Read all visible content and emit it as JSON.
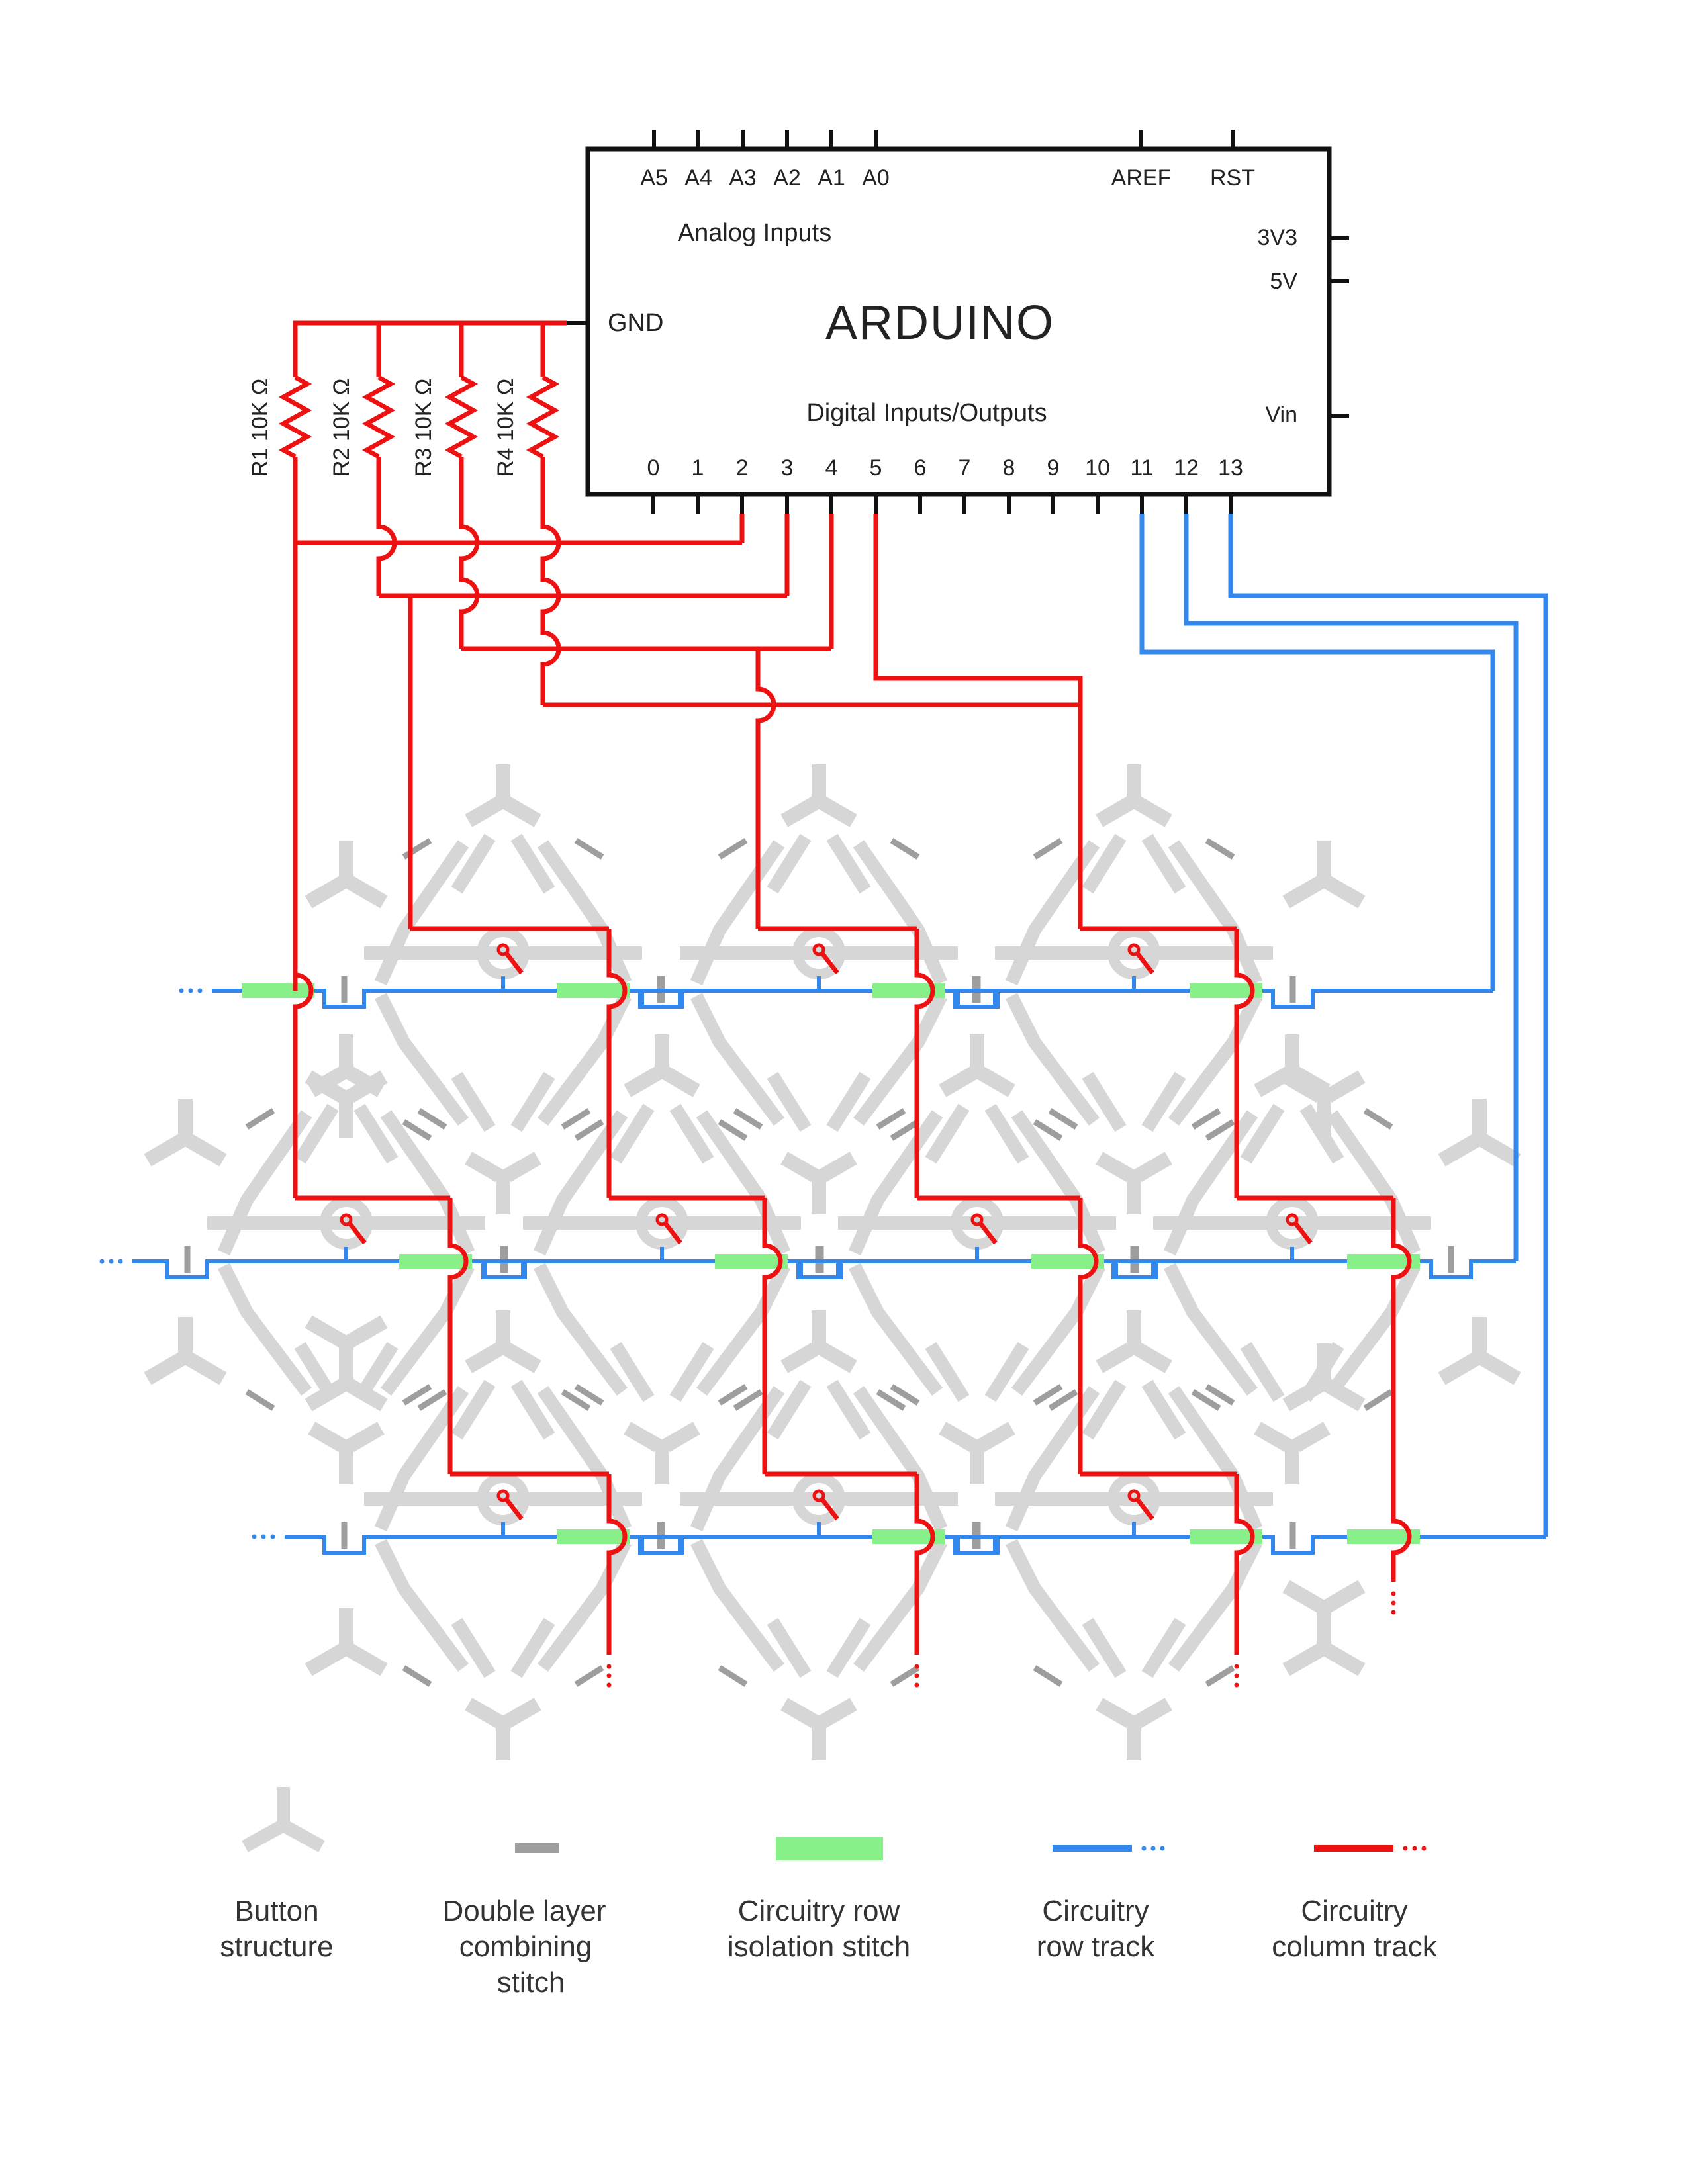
{
  "colors": {
    "column_track": "#ee1111",
    "row_track": "#3388ee",
    "button_structure": "#d6d6d6",
    "combining_stitch": "#9e9e9e",
    "isolation_stitch": "#88f088",
    "board_outline": "#111111"
  },
  "arduino": {
    "title": "ARDUINO",
    "analog_label": "Analog Inputs",
    "digital_label": "Digital Inputs/Outputs",
    "gnd": "GND",
    "top_pins": [
      "A5",
      "A4",
      "A3",
      "A2",
      "A1",
      "A0",
      "AREF",
      "RST"
    ],
    "right_pins": [
      "3V3",
      "5V",
      "Vin"
    ],
    "digital_pins": [
      "0",
      "1",
      "2",
      "3",
      "4",
      "5",
      "6",
      "7",
      "8",
      "9",
      "10",
      "11",
      "12",
      "13"
    ]
  },
  "resistors": [
    "R1 10K Ω",
    "R2 10K Ω",
    "R3 10K Ω",
    "R4 10K Ω"
  ],
  "legend": [
    {
      "icon": "button-structure-icon",
      "lines": [
        "Button",
        "structure"
      ]
    },
    {
      "icon": "double-layer-stitch-icon",
      "lines": [
        "Double layer",
        "combining",
        "stitch"
      ]
    },
    {
      "icon": "row-isolation-stitch-icon",
      "lines": [
        "Circuitry row",
        "isolation stitch"
      ]
    },
    {
      "icon": "row-track-icon",
      "lines": [
        "Circuitry",
        "row track"
      ]
    },
    {
      "icon": "column-track-icon",
      "lines": [
        "Circuitry",
        "column track"
      ]
    }
  ],
  "matrix": {
    "rows": 3,
    "buttons_per_row": [
      3,
      4,
      3
    ]
  }
}
